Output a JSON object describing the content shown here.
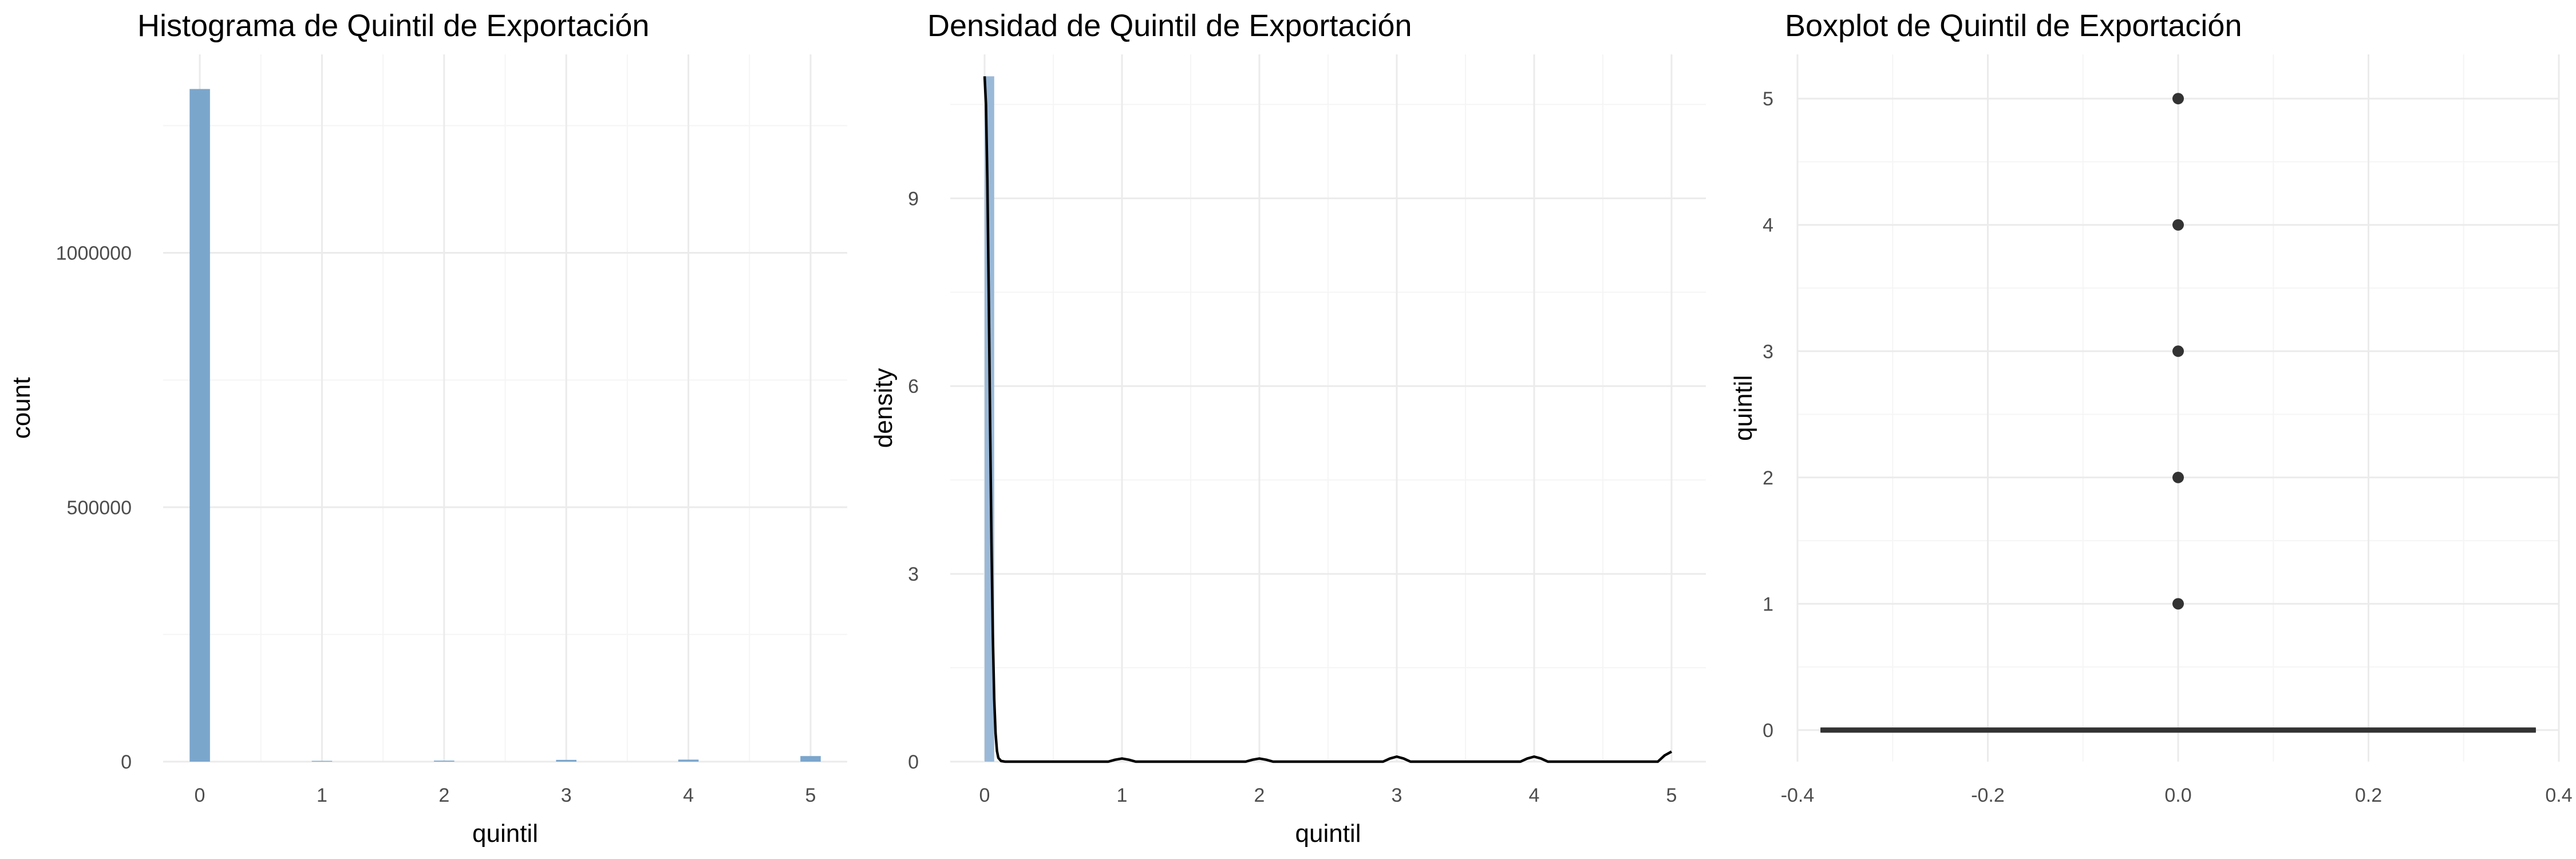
{
  "chart_data": [
    {
      "type": "bar",
      "title": "Histograma de Quintil de Exportación",
      "xlabel": "quintil",
      "ylabel": "count",
      "xlim": [
        -0.3,
        5.3
      ],
      "ylim": [
        0,
        1390000
      ],
      "x_ticks": [
        0,
        1,
        2,
        3,
        4,
        5
      ],
      "y_ticks": [
        0,
        500000,
        1000000
      ],
      "x_tick_labels": [
        "0",
        "1",
        "2",
        "3",
        "4",
        "5"
      ],
      "y_tick_labels": [
        "0",
        "500000",
        "1000000"
      ],
      "bin_width": 0.1667,
      "bars": [
        {
          "x": 0,
          "value": 1322000
        },
        {
          "x": 1,
          "value": 1500
        },
        {
          "x": 2,
          "value": 2000
        },
        {
          "x": 3,
          "value": 3500
        },
        {
          "x": 4,
          "value": 4000
        },
        {
          "x": 5,
          "value": 11000
        }
      ],
      "color": "#7ba6cc",
      "grid": true
    },
    {
      "type": "area",
      "title": "Densidad de Quintil de Exportación",
      "xlabel": "quintil",
      "ylabel": "density",
      "xlim": [
        -0.25,
        5.25
      ],
      "ylim": [
        0,
        11.3
      ],
      "x_ticks": [
        0,
        1,
        2,
        3,
        4,
        5
      ],
      "y_ticks": [
        0,
        3,
        6,
        9
      ],
      "x_tick_labels": [
        "0",
        "1",
        "2",
        "3",
        "4",
        "5"
      ],
      "y_tick_labels": [
        "0",
        "3",
        "6",
        "9"
      ],
      "series": [
        {
          "x": [
            0,
            0.01,
            0.02,
            0.03,
            0.04,
            0.05,
            0.06,
            0.07,
            0.08,
            0.09,
            0.1,
            0.12,
            0.15,
            0.2,
            0.9,
            0.95,
            1.0,
            1.05,
            1.1,
            1.9,
            1.95,
            2.0,
            2.05,
            2.1,
            2.9,
            2.95,
            3.0,
            3.05,
            3.1,
            3.9,
            3.95,
            4.0,
            4.05,
            4.1,
            4.9,
            4.95,
            5.0
          ],
          "values": [
            10.95,
            10.5,
            9.3,
            7.5,
            5.4,
            3.5,
            2.0,
            1.0,
            0.45,
            0.17,
            0.06,
            0.01,
            0,
            0,
            0,
            0.03,
            0.05,
            0.03,
            0,
            0,
            0.03,
            0.05,
            0.03,
            0,
            0,
            0.05,
            0.08,
            0.05,
            0,
            0,
            0.05,
            0.08,
            0.05,
            0,
            0,
            0.1,
            0.16
          ]
        }
      ],
      "fill_color": "#9ab9d8",
      "line_color": "#000000",
      "grid": true
    },
    {
      "type": "boxplot",
      "title": "Boxplot de Quintil de Exportación",
      "xlabel": "",
      "ylabel": "quintil",
      "xlim": [
        -0.4,
        0.4
      ],
      "ylim": [
        -0.25,
        5.35
      ],
      "x_ticks": [
        -0.4,
        -0.2,
        0.0,
        0.2,
        0.4
      ],
      "y_ticks": [
        0,
        1,
        2,
        3,
        4,
        5
      ],
      "x_tick_labels": [
        "-0.4",
        "-0.2",
        "0.0",
        "0.2",
        "0.4"
      ],
      "y_tick_labels": [
        "0",
        "1",
        "2",
        "3",
        "4",
        "5"
      ],
      "box": {
        "x": 0,
        "width": 0.75,
        "q1": 0,
        "median": 0,
        "q3": 0,
        "whisker_low": 0,
        "whisker_high": 0
      },
      "outliers": [
        1,
        2,
        3,
        4,
        5
      ],
      "color": "#333333",
      "grid": true
    }
  ]
}
